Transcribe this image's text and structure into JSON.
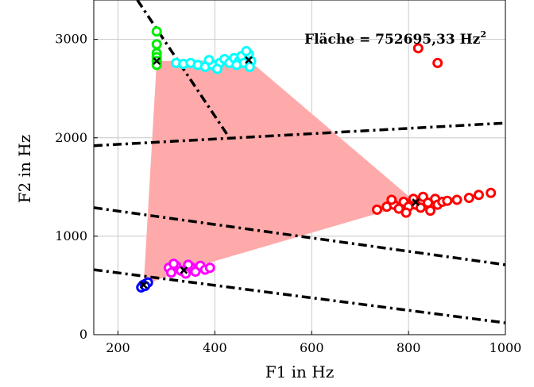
{
  "chart_data": {
    "type": "scatter",
    "xlabel": "F1 in Hz",
    "ylabel": "F2 in Hz",
    "xlim": [
      150,
      1000
    ],
    "ylim": [
      0,
      3400
    ],
    "xticks": [
      "200",
      "400",
      "600",
      "800",
      "1000"
    ],
    "yticks": [
      "0",
      "1000",
      "2000",
      "3000"
    ],
    "grid": true,
    "annotation": {
      "text": "Fläche = 752695,33 Hz",
      "sup": "2"
    },
    "polygon": {
      "color": "#ffaaaa",
      "vertices": [
        [
          280,
          2780
        ],
        [
          470,
          2790
        ],
        [
          815,
          1345
        ],
        [
          336,
          655
        ],
        [
          253,
          505
        ]
      ]
    },
    "series": [
      {
        "color": "#00ee00",
        "points": [
          [
            280,
            3080
          ],
          [
            280,
            2950
          ],
          [
            280,
            2860
          ],
          [
            280,
            2820
          ],
          [
            280,
            2780
          ],
          [
            280,
            2740
          ]
        ]
      },
      {
        "color": "#00ffff",
        "points": [
          [
            320,
            2760
          ],
          [
            335,
            2750
          ],
          [
            350,
            2760
          ],
          [
            365,
            2740
          ],
          [
            380,
            2720
          ],
          [
            395,
            2740
          ],
          [
            410,
            2760
          ],
          [
            420,
            2800
          ],
          [
            430,
            2760
          ],
          [
            440,
            2810
          ],
          [
            450,
            2780
          ],
          [
            455,
            2830
          ],
          [
            460,
            2760
          ],
          [
            470,
            2850
          ],
          [
            475,
            2780
          ],
          [
            472,
            2720
          ],
          [
            465,
            2880
          ],
          [
            445,
            2740
          ],
          [
            405,
            2700
          ],
          [
            388,
            2790
          ]
        ]
      },
      {
        "color": "#ff0000",
        "points": [
          [
            820,
            2910
          ],
          [
            860,
            2760
          ],
          [
            735,
            1270
          ],
          [
            755,
            1300
          ],
          [
            770,
            1320
          ],
          [
            780,
            1280
          ],
          [
            790,
            1350
          ],
          [
            800,
            1300
          ],
          [
            810,
            1380
          ],
          [
            815,
            1320
          ],
          [
            825,
            1290
          ],
          [
            830,
            1400
          ],
          [
            840,
            1340
          ],
          [
            845,
            1260
          ],
          [
            855,
            1380
          ],
          [
            860,
            1320
          ],
          [
            870,
            1350
          ],
          [
            880,
            1360
          ],
          [
            900,
            1370
          ],
          [
            925,
            1390
          ],
          [
            945,
            1420
          ],
          [
            970,
            1440
          ],
          [
            765,
            1370
          ],
          [
            795,
            1240
          ]
        ]
      },
      {
        "color": "#ff00ff",
        "points": [
          [
            305,
            680
          ],
          [
            310,
            630
          ],
          [
            320,
            700
          ],
          [
            330,
            650
          ],
          [
            340,
            620
          ],
          [
            350,
            690
          ],
          [
            360,
            640
          ],
          [
            370,
            700
          ],
          [
            380,
            660
          ],
          [
            390,
            680
          ],
          [
            315,
            720
          ],
          [
            345,
            710
          ]
        ]
      },
      {
        "color": "#0000ff",
        "points": [
          [
            250,
            490
          ],
          [
            252,
            505
          ],
          [
            255,
            510
          ],
          [
            258,
            520
          ],
          [
            262,
            530
          ],
          [
            248,
            480
          ],
          [
            256,
            495
          ]
        ]
      }
    ],
    "means": [
      [
        280,
        2780
      ],
      [
        470,
        2790
      ],
      [
        815,
        1345
      ],
      [
        336,
        655
      ],
      [
        253,
        505
      ]
    ],
    "lines": [
      [
        [
          240,
          3400
        ],
        [
          430,
          2000
        ]
      ],
      [
        [
          150,
          1920
        ],
        [
          1000,
          2150
        ]
      ],
      [
        [
          150,
          1290
        ],
        [
          1000,
          710
        ]
      ],
      [
        [
          150,
          660
        ],
        [
          1000,
          120
        ]
      ]
    ]
  }
}
